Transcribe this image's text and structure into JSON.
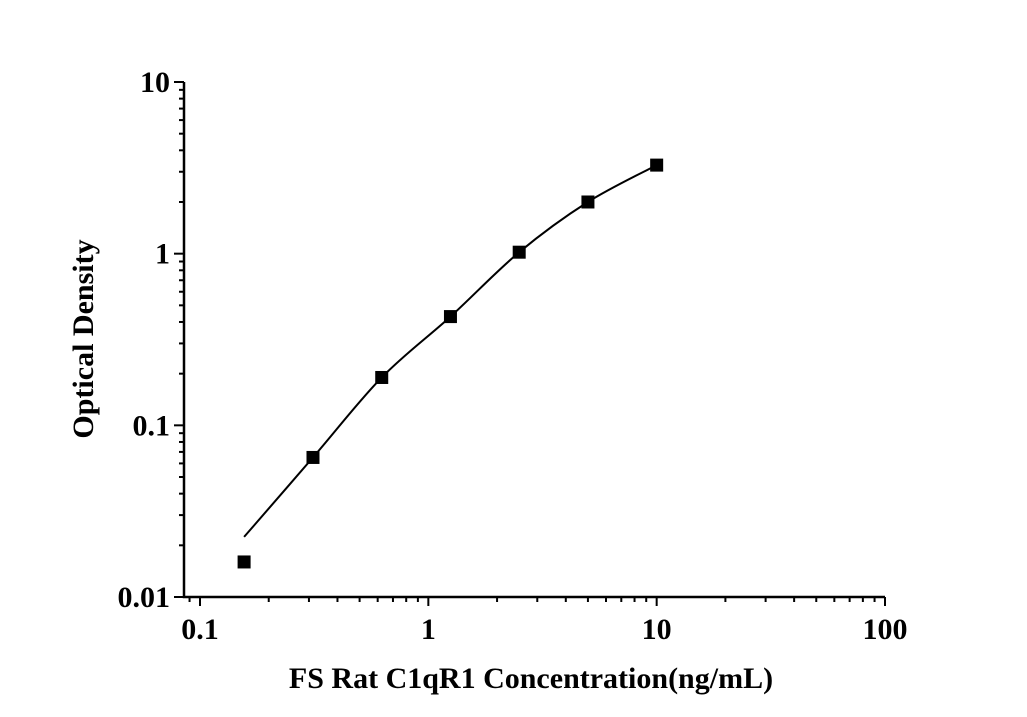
{
  "chart_data": {
    "type": "scatter",
    "title": "",
    "xlabel": "FS Rat C1qR1 Concentration(ng/mL)",
    "ylabel": "Optical Density",
    "x_scale": "log",
    "y_scale": "log",
    "xlim": [
      0.085,
      100
    ],
    "ylim": [
      0.01,
      10
    ],
    "x_ticks": [
      0.1,
      1,
      10,
      100
    ],
    "x_tick_labels": [
      "0.1",
      "1",
      "10",
      "100"
    ],
    "y_ticks": [
      10,
      1,
      0.1,
      0.01
    ],
    "y_tick_labels": [
      "10",
      "1",
      "0.1",
      "0.01"
    ],
    "grid": false,
    "legend": false,
    "background_color": "#ffffff",
    "line_color": "#000000",
    "marker_color": "#000000",
    "marker_shape": "filled-square",
    "series": [
      {
        "name": "standard-curve",
        "points": [
          {
            "x": 0.156,
            "y": 0.016
          },
          {
            "x": 0.3125,
            "y": 0.065
          },
          {
            "x": 0.625,
            "y": 0.19
          },
          {
            "x": 1.25,
            "y": 0.43
          },
          {
            "x": 2.5,
            "y": 1.02
          },
          {
            "x": 5,
            "y": 2.0
          },
          {
            "x": 10,
            "y": 3.28
          }
        ],
        "fit_curve": [
          {
            "x": 0.156,
            "y": 0.0224
          },
          {
            "x": 0.3125,
            "y": 0.065
          },
          {
            "x": 0.625,
            "y": 0.19
          },
          {
            "x": 1.25,
            "y": 0.43
          },
          {
            "x": 2.5,
            "y": 1.02
          },
          {
            "x": 5,
            "y": 2.0
          },
          {
            "x": 10,
            "y": 3.28
          }
        ]
      }
    ]
  }
}
